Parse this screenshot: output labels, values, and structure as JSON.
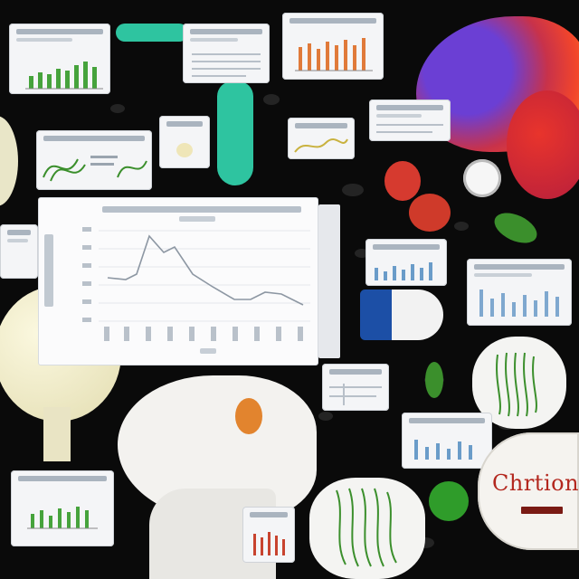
{
  "scene": {
    "description_free": true
  },
  "brand_badge": {
    "word": "Chrtion"
  },
  "colors": {
    "background": "#0a0a0a",
    "line": "#8d97a3",
    "green": "#3b8f2c",
    "orange_bars": "#e07a3a",
    "blue_bars": "#6a9cc9",
    "teal": "#2ec4a0",
    "red_word": "#b3271e"
  },
  "icons": [
    "vase-icon",
    "glove-icon",
    "head-sculpture-icon",
    "bulb-icon",
    "strawberry-icon",
    "leaf-icon",
    "clock-icon",
    "fish-icon"
  ]
}
